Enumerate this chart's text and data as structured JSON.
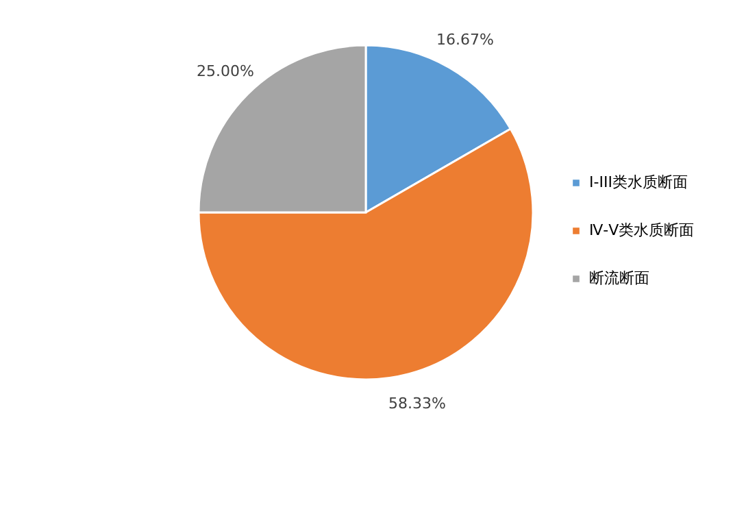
{
  "chart_data": {
    "type": "pie",
    "categories": [
      "Ⅰ-III类水质断面",
      "Ⅳ-Ⅴ类水质断面",
      "断流断面"
    ],
    "values": [
      16.67,
      58.33,
      25.0
    ],
    "colors": [
      "#5b9bd5",
      "#ed7d31",
      "#a5a5a5"
    ],
    "value_labels": [
      "16.67%",
      "58.33%",
      "25.00%"
    ],
    "legend": "right"
  }
}
